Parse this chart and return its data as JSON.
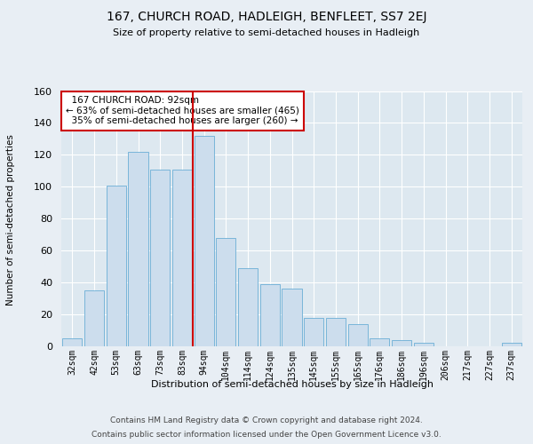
{
  "title": "167, CHURCH ROAD, HADLEIGH, BENFLEET, SS7 2EJ",
  "subtitle": "Size of property relative to semi-detached houses in Hadleigh",
  "xlabel": "Distribution of semi-detached houses by size in Hadleigh",
  "ylabel": "Number of semi-detached properties",
  "bar_labels": [
    "32sqm",
    "42sqm",
    "53sqm",
    "63sqm",
    "73sqm",
    "83sqm",
    "94sqm",
    "104sqm",
    "114sqm",
    "124sqm",
    "135sqm",
    "145sqm",
    "155sqm",
    "165sqm",
    "176sqm",
    "186sqm",
    "196sqm",
    "206sqm",
    "217sqm",
    "227sqm",
    "237sqm"
  ],
  "bar_values": [
    5,
    35,
    101,
    122,
    111,
    111,
    132,
    68,
    49,
    39,
    36,
    18,
    18,
    14,
    5,
    4,
    2,
    0,
    0,
    0,
    2
  ],
  "bar_color": "#ccdded",
  "bar_edge_color": "#6aaed6",
  "property_label": "167 CHURCH ROAD: 92sqm",
  "pct_smaller": 63,
  "pct_smaller_n": 465,
  "pct_larger": 35,
  "pct_larger_n": 260,
  "vline_color": "#cc0000",
  "annotation_box_edge_color": "#cc0000",
  "ylim": [
    0,
    160
  ],
  "yticks": [
    0,
    20,
    40,
    60,
    80,
    100,
    120,
    140,
    160
  ],
  "footer1": "Contains HM Land Registry data © Crown copyright and database right 2024.",
  "footer2": "Contains public sector information licensed under the Open Government Licence v3.0.",
  "background_color": "#e8eef4",
  "plot_background_color": "#dde8f0"
}
